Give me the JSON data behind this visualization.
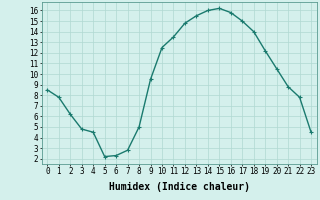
{
  "x": [
    0,
    1,
    2,
    3,
    4,
    5,
    6,
    7,
    8,
    9,
    10,
    11,
    12,
    13,
    14,
    15,
    16,
    17,
    18,
    19,
    20,
    21,
    22,
    23
  ],
  "y": [
    8.5,
    7.8,
    6.2,
    4.8,
    4.5,
    2.2,
    2.3,
    2.8,
    5.0,
    9.5,
    12.5,
    13.5,
    14.8,
    15.5,
    16.0,
    16.2,
    15.8,
    15.0,
    14.0,
    12.2,
    10.5,
    8.8,
    7.8,
    4.5
  ],
  "line_color": "#1a7a6e",
  "marker": "+",
  "bg_color": "#d4f0ec",
  "grid_color": "#b0d8d2",
  "xlabel": "Humidex (Indice chaleur)",
  "xlim": [
    -0.5,
    23.5
  ],
  "ylim": [
    1.5,
    16.8
  ],
  "xticks": [
    0,
    1,
    2,
    3,
    4,
    5,
    6,
    7,
    8,
    9,
    10,
    11,
    12,
    13,
    14,
    15,
    16,
    17,
    18,
    19,
    20,
    21,
    22,
    23
  ],
  "yticks": [
    2,
    3,
    4,
    5,
    6,
    7,
    8,
    9,
    10,
    11,
    12,
    13,
    14,
    15,
    16
  ],
  "xlabel_fontsize": 7,
  "tick_fontsize": 5.5,
  "linewidth": 1.0,
  "markersize": 3,
  "markeredgewidth": 0.8
}
